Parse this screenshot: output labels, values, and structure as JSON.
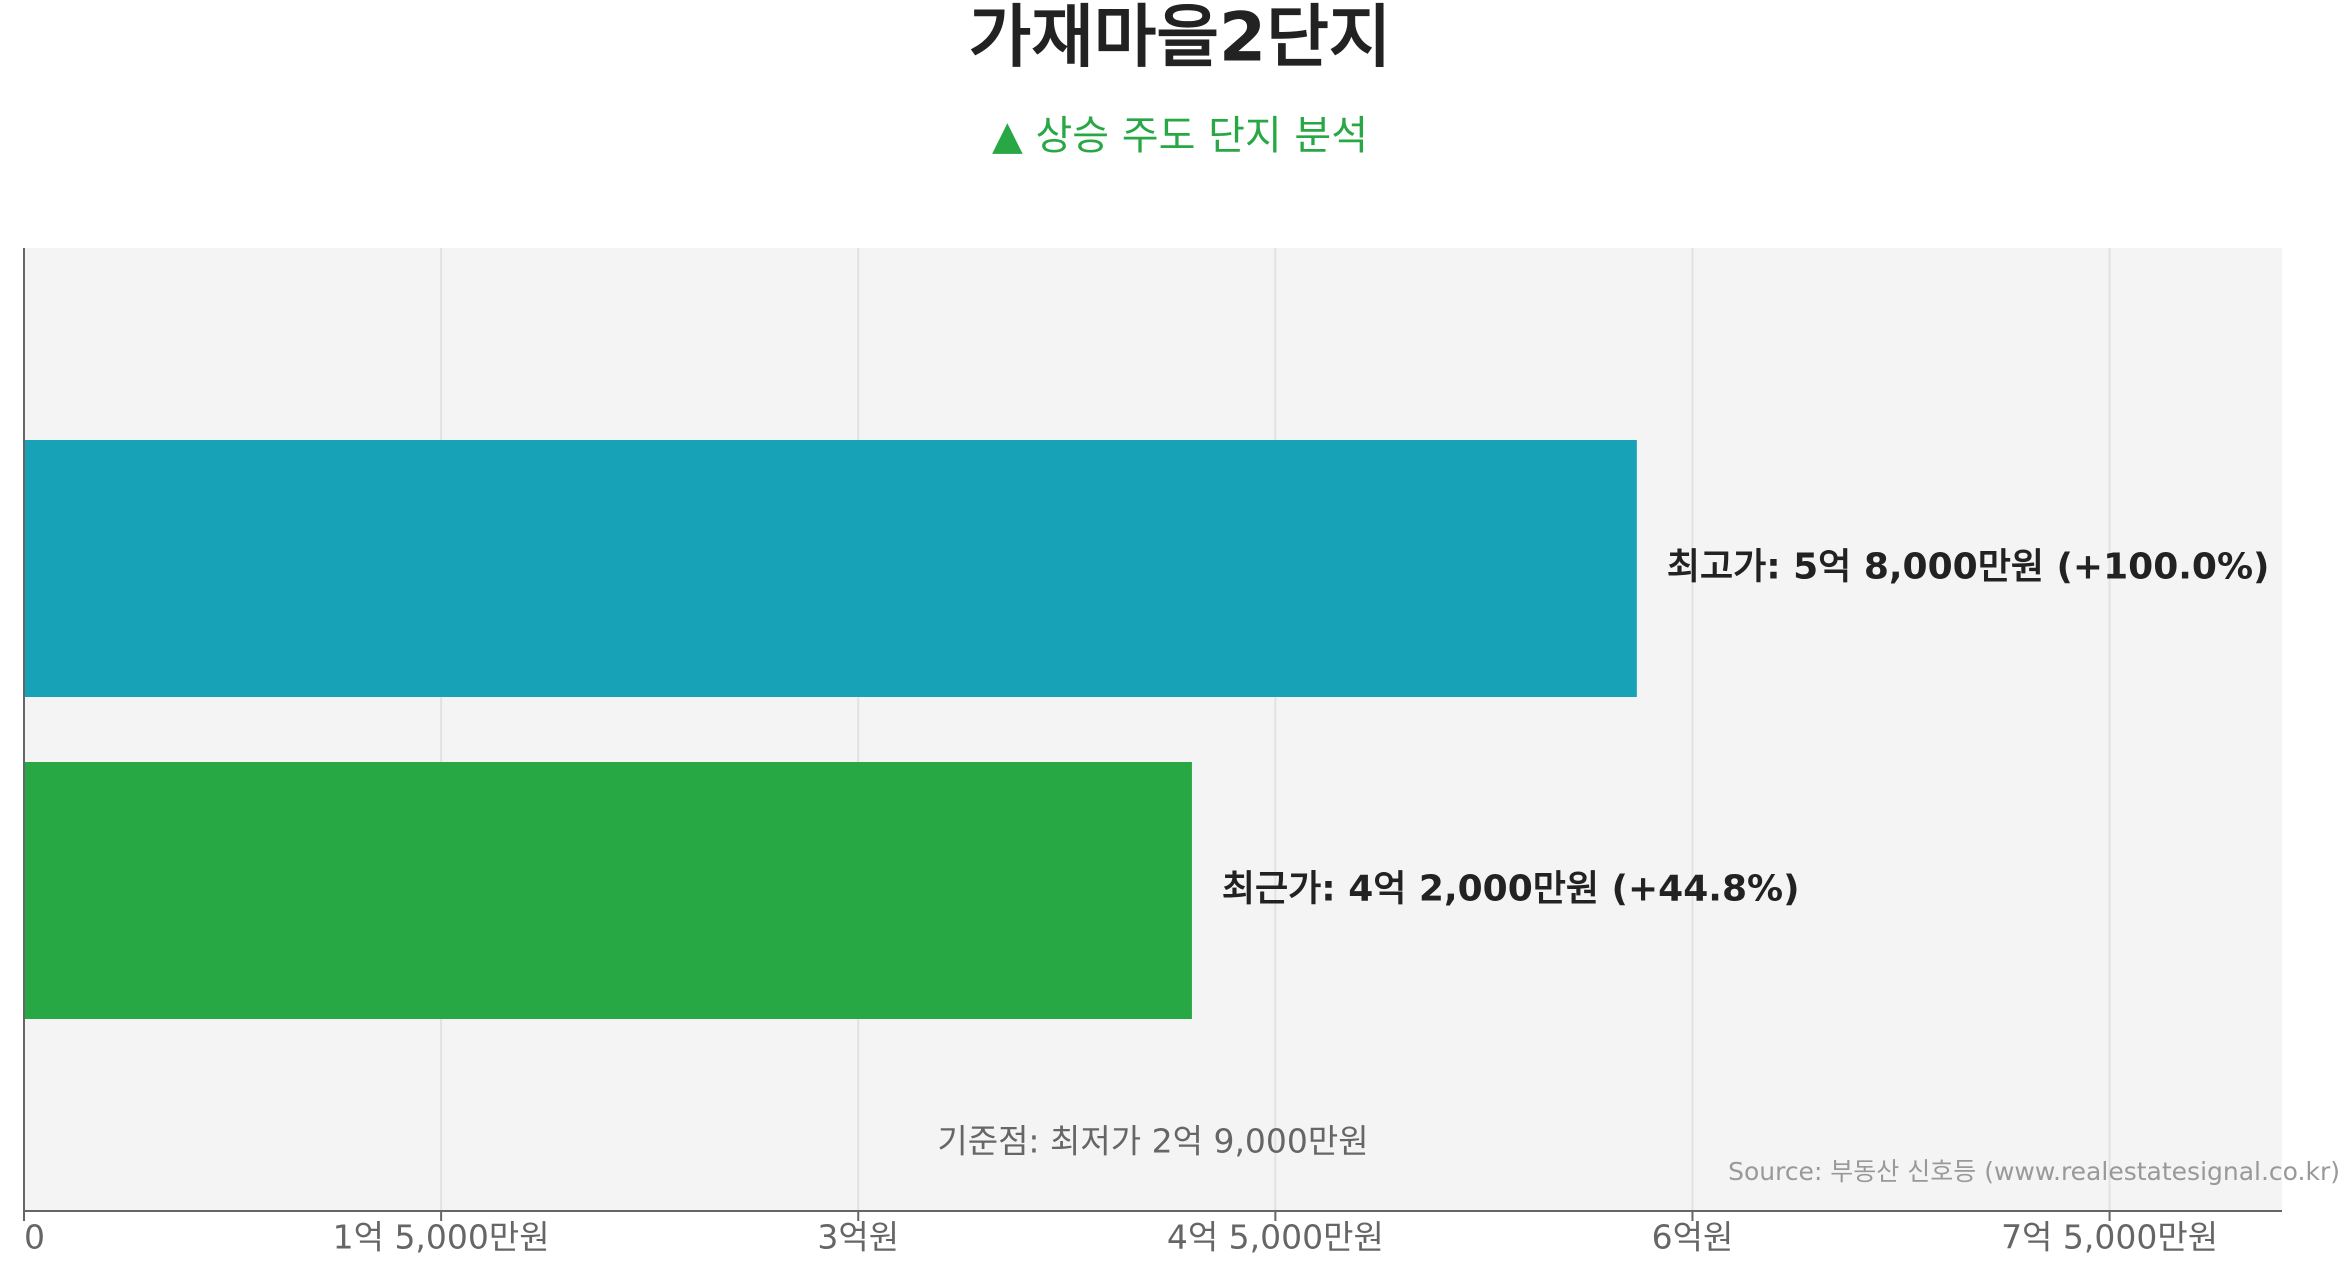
{
  "chart_data": {
    "type": "hbar",
    "title": "가재마을2단지",
    "subtitle": "▲ 상승 주도 단지 분석",
    "categories": [
      null,
      null
    ],
    "series": [
      {
        "values": [
          580000000,
          420000000
        ],
        "colors": [
          "#17a2b8",
          "#28a745"
        ],
        "value_labels": [
          "최고가: 5억 8,000만원 (+100.0%)",
          "최근가: 4억 2,000만원 (+44.8%)"
        ]
      }
    ],
    "xlim": [
      0,
      812000000
    ],
    "xticks": [
      0,
      {
        "value": 150000000,
        "label": "1억 5,000만원"
      },
      {
        "value": 300000000,
        "label": "3억원"
      },
      {
        "value": 450000000,
        "label": "4억 5,000만원"
      },
      {
        "value": 600000000,
        "label": "6억원"
      },
      {
        "value": 750000000,
        "label": "7억 5,000만원"
      }
    ],
    "grid": true,
    "annotation": "기준점: 최저가 2억 9,000만원",
    "source": "Source: 부동산 신호등 (www.realestatesignal.co.kr)"
  }
}
